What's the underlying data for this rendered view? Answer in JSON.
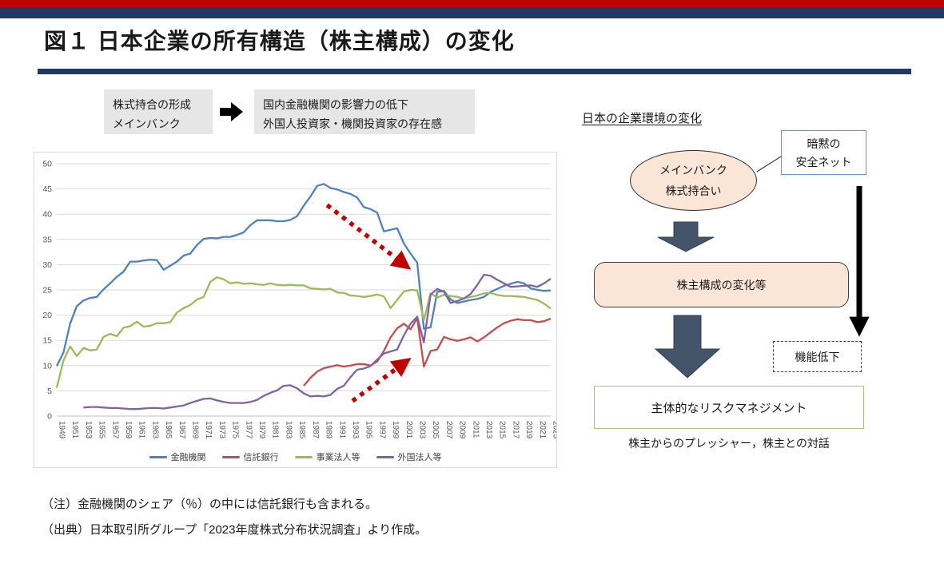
{
  "slide": {
    "title": "図１ 日本企業の所有構造（株主構成）の変化",
    "flow": {
      "box1_line1": "株式持合の形成",
      "box1_line2": "メインバンク",
      "box2_line1": "国内金融機関の影響力の低下",
      "box2_line2": "外国人投資家・機関投資家の存在感"
    },
    "notes": [
      "（注）金融機関のシェア（％）の中には信託銀行も含まれる。",
      "（出典）日本取引所グループ「2023年度株式分布状況調査」より作成。"
    ]
  },
  "diagram": {
    "title": "日本の企業環境の変化",
    "ellipse_line1": "メインバンク",
    "ellipse_line2": "株式持合い",
    "callout_line1": "暗黙の",
    "callout_line2": "安全ネット",
    "mid_box": "株主構成の変化等",
    "dashed_box": "機能低下",
    "bottom_box": "主体的なリスクマネジメント",
    "caption": "株主からのプレッシャー，株主との対話"
  },
  "colors": {
    "top_bar_red": "#C00000",
    "top_bar_navy": "#1F3864",
    "flow_box_gray": "#E7E6E6",
    "shape_peach": "#FBE5D6",
    "callout_border_blue": "#5B9BD5",
    "green_box_border": "#A9C47F",
    "slate_arrow": "#44546A",
    "annotation_red": "#C00000"
  },
  "chart_data": {
    "type": "line",
    "title": "",
    "xlabel": "",
    "ylabel": "",
    "ylim": [
      0,
      50
    ],
    "ytick_step": 5,
    "grid": true,
    "legend_position": "bottom",
    "x_years": [
      1949,
      1950,
      1951,
      1952,
      1953,
      1954,
      1955,
      1956,
      1957,
      1958,
      1959,
      1960,
      1961,
      1962,
      1963,
      1964,
      1965,
      1966,
      1967,
      1968,
      1969,
      1970,
      1971,
      1972,
      1973,
      1974,
      1975,
      1976,
      1977,
      1978,
      1979,
      1980,
      1981,
      1982,
      1983,
      1984,
      1985,
      1986,
      1987,
      1988,
      1989,
      1990,
      1991,
      1992,
      1993,
      1994,
      1995,
      1996,
      1997,
      1998,
      1999,
      2000,
      2001,
      2002,
      2003,
      2004,
      2005,
      2006,
      2007,
      2008,
      2009,
      2010,
      2011,
      2012,
      2013,
      2014,
      2015,
      2016,
      2017,
      2018,
      2019,
      2020,
      2021,
      2022,
      2023
    ],
    "x_tick_labels": [
      1949,
      1951,
      1953,
      1955,
      1957,
      1959,
      1961,
      1963,
      1965,
      1967,
      1969,
      1971,
      1973,
      1975,
      1977,
      1979,
      1981,
      1983,
      1985,
      1987,
      1989,
      1991,
      1993,
      1995,
      1997,
      1999,
      2001,
      2003,
      2005,
      2007,
      2009,
      2011,
      2013,
      2015,
      2017,
      2019,
      2021,
      2023
    ],
    "series": [
      {
        "name": "金融機関",
        "color": "#4F81BD",
        "values": [
          9.9,
          12.6,
          18.3,
          21.8,
          22.9,
          23.4,
          23.6,
          25.1,
          26.3,
          27.6,
          28.6,
          30.6,
          30.6,
          30.8,
          31.0,
          30.9,
          29.0,
          29.8,
          30.6,
          31.8,
          32.2,
          33.9,
          35.1,
          35.3,
          35.2,
          35.5,
          35.5,
          35.9,
          36.4,
          37.8,
          38.8,
          38.8,
          38.8,
          38.6,
          38.6,
          38.9,
          39.6,
          41.7,
          43.5,
          45.6,
          46.0,
          45.2,
          44.9,
          44.4,
          44.0,
          43.3,
          41.4,
          41.0,
          40.3,
          36.6,
          36.9,
          37.2,
          34.2,
          32.2,
          30.4,
          17.3,
          17.6,
          24.6,
          24.8,
          23.1,
          22.4,
          22.7,
          23.0,
          23.2,
          23.6,
          24.6,
          25.2,
          25.8,
          26.2,
          26.6,
          26.3,
          25.3,
          25.0,
          24.8,
          24.9
        ]
      },
      {
        "name": "信託銀行",
        "color": "#C0504D",
        "values": [
          null,
          null,
          null,
          null,
          null,
          null,
          null,
          null,
          null,
          null,
          null,
          null,
          null,
          null,
          null,
          null,
          null,
          null,
          null,
          null,
          null,
          null,
          null,
          null,
          null,
          null,
          null,
          null,
          null,
          null,
          null,
          null,
          null,
          null,
          null,
          null,
          null,
          6.0,
          7.6,
          8.8,
          9.5,
          9.8,
          10.1,
          9.8,
          10.0,
          10.3,
          10.3,
          10.0,
          10.8,
          12.9,
          15.6,
          17.4,
          18.3,
          17.2,
          19.4,
          9.8,
          12.9,
          13.2,
          15.7,
          15.2,
          14.9,
          15.2,
          15.6,
          14.8,
          15.6,
          16.6,
          17.6,
          18.4,
          18.9,
          19.2,
          19.0,
          19.0,
          18.6,
          18.8,
          19.3
        ]
      },
      {
        "name": "事業法人等",
        "color": "#9BBB59",
        "values": [
          5.6,
          11.0,
          13.8,
          11.9,
          13.5,
          13.0,
          13.2,
          15.7,
          16.3,
          15.8,
          17.5,
          17.8,
          18.7,
          17.7,
          17.9,
          18.4,
          18.4,
          18.6,
          20.5,
          21.4,
          22.0,
          23.1,
          23.6,
          26.6,
          27.5,
          27.1,
          26.3,
          26.5,
          26.2,
          26.3,
          26.1,
          26.0,
          26.3,
          26.0,
          25.9,
          26.0,
          25.9,
          25.9,
          25.3,
          25.2,
          25.1,
          25.2,
          24.5,
          24.4,
          23.9,
          23.8,
          23.6,
          23.8,
          24.1,
          23.7,
          21.4,
          23.0,
          24.7,
          25.0,
          24.9,
          19.0,
          24.3,
          23.5,
          24.0,
          23.8,
          23.6,
          23.3,
          23.6,
          23.9,
          24.3,
          24.4,
          24.0,
          23.8,
          23.8,
          23.7,
          23.6,
          23.3,
          23.0,
          22.3,
          21.3
        ]
      },
      {
        "name": "外国法人等",
        "color": "#8064A2",
        "values": [
          null,
          null,
          null,
          null,
          1.7,
          1.8,
          1.8,
          1.7,
          1.6,
          1.6,
          1.5,
          1.4,
          1.4,
          1.5,
          1.6,
          1.6,
          1.5,
          1.7,
          1.9,
          2.1,
          2.6,
          3.0,
          3.4,
          3.5,
          3.1,
          2.8,
          2.6,
          2.6,
          2.6,
          2.8,
          3.2,
          4.0,
          4.6,
          5.1,
          6.0,
          6.1,
          5.5,
          4.5,
          3.9,
          4.0,
          3.9,
          4.2,
          5.4,
          6.0,
          7.7,
          9.2,
          9.4,
          9.9,
          11.2,
          12.4,
          12.8,
          13.2,
          16.0,
          18.3,
          19.7,
          14.6,
          24.1,
          25.2,
          24.6,
          22.4,
          22.8,
          23.3,
          24.2,
          26.0,
          28.0,
          27.8,
          27.0,
          26.3,
          25.6,
          25.7,
          25.8,
          25.9,
          25.6,
          26.3,
          27.2
        ]
      }
    ],
    "annotations": [
      {
        "type": "dashed-arrow",
        "color": "#C00000",
        "from": {
          "year": 1989.5,
          "value": 41.8
        },
        "to": {
          "year": 2000.3,
          "value": 30.8
        }
      },
      {
        "type": "dashed-arrow",
        "color": "#C00000",
        "from": {
          "year": 1993.3,
          "value": 3.0
        },
        "to": {
          "year": 2000.3,
          "value": 9.8
        }
      }
    ]
  }
}
